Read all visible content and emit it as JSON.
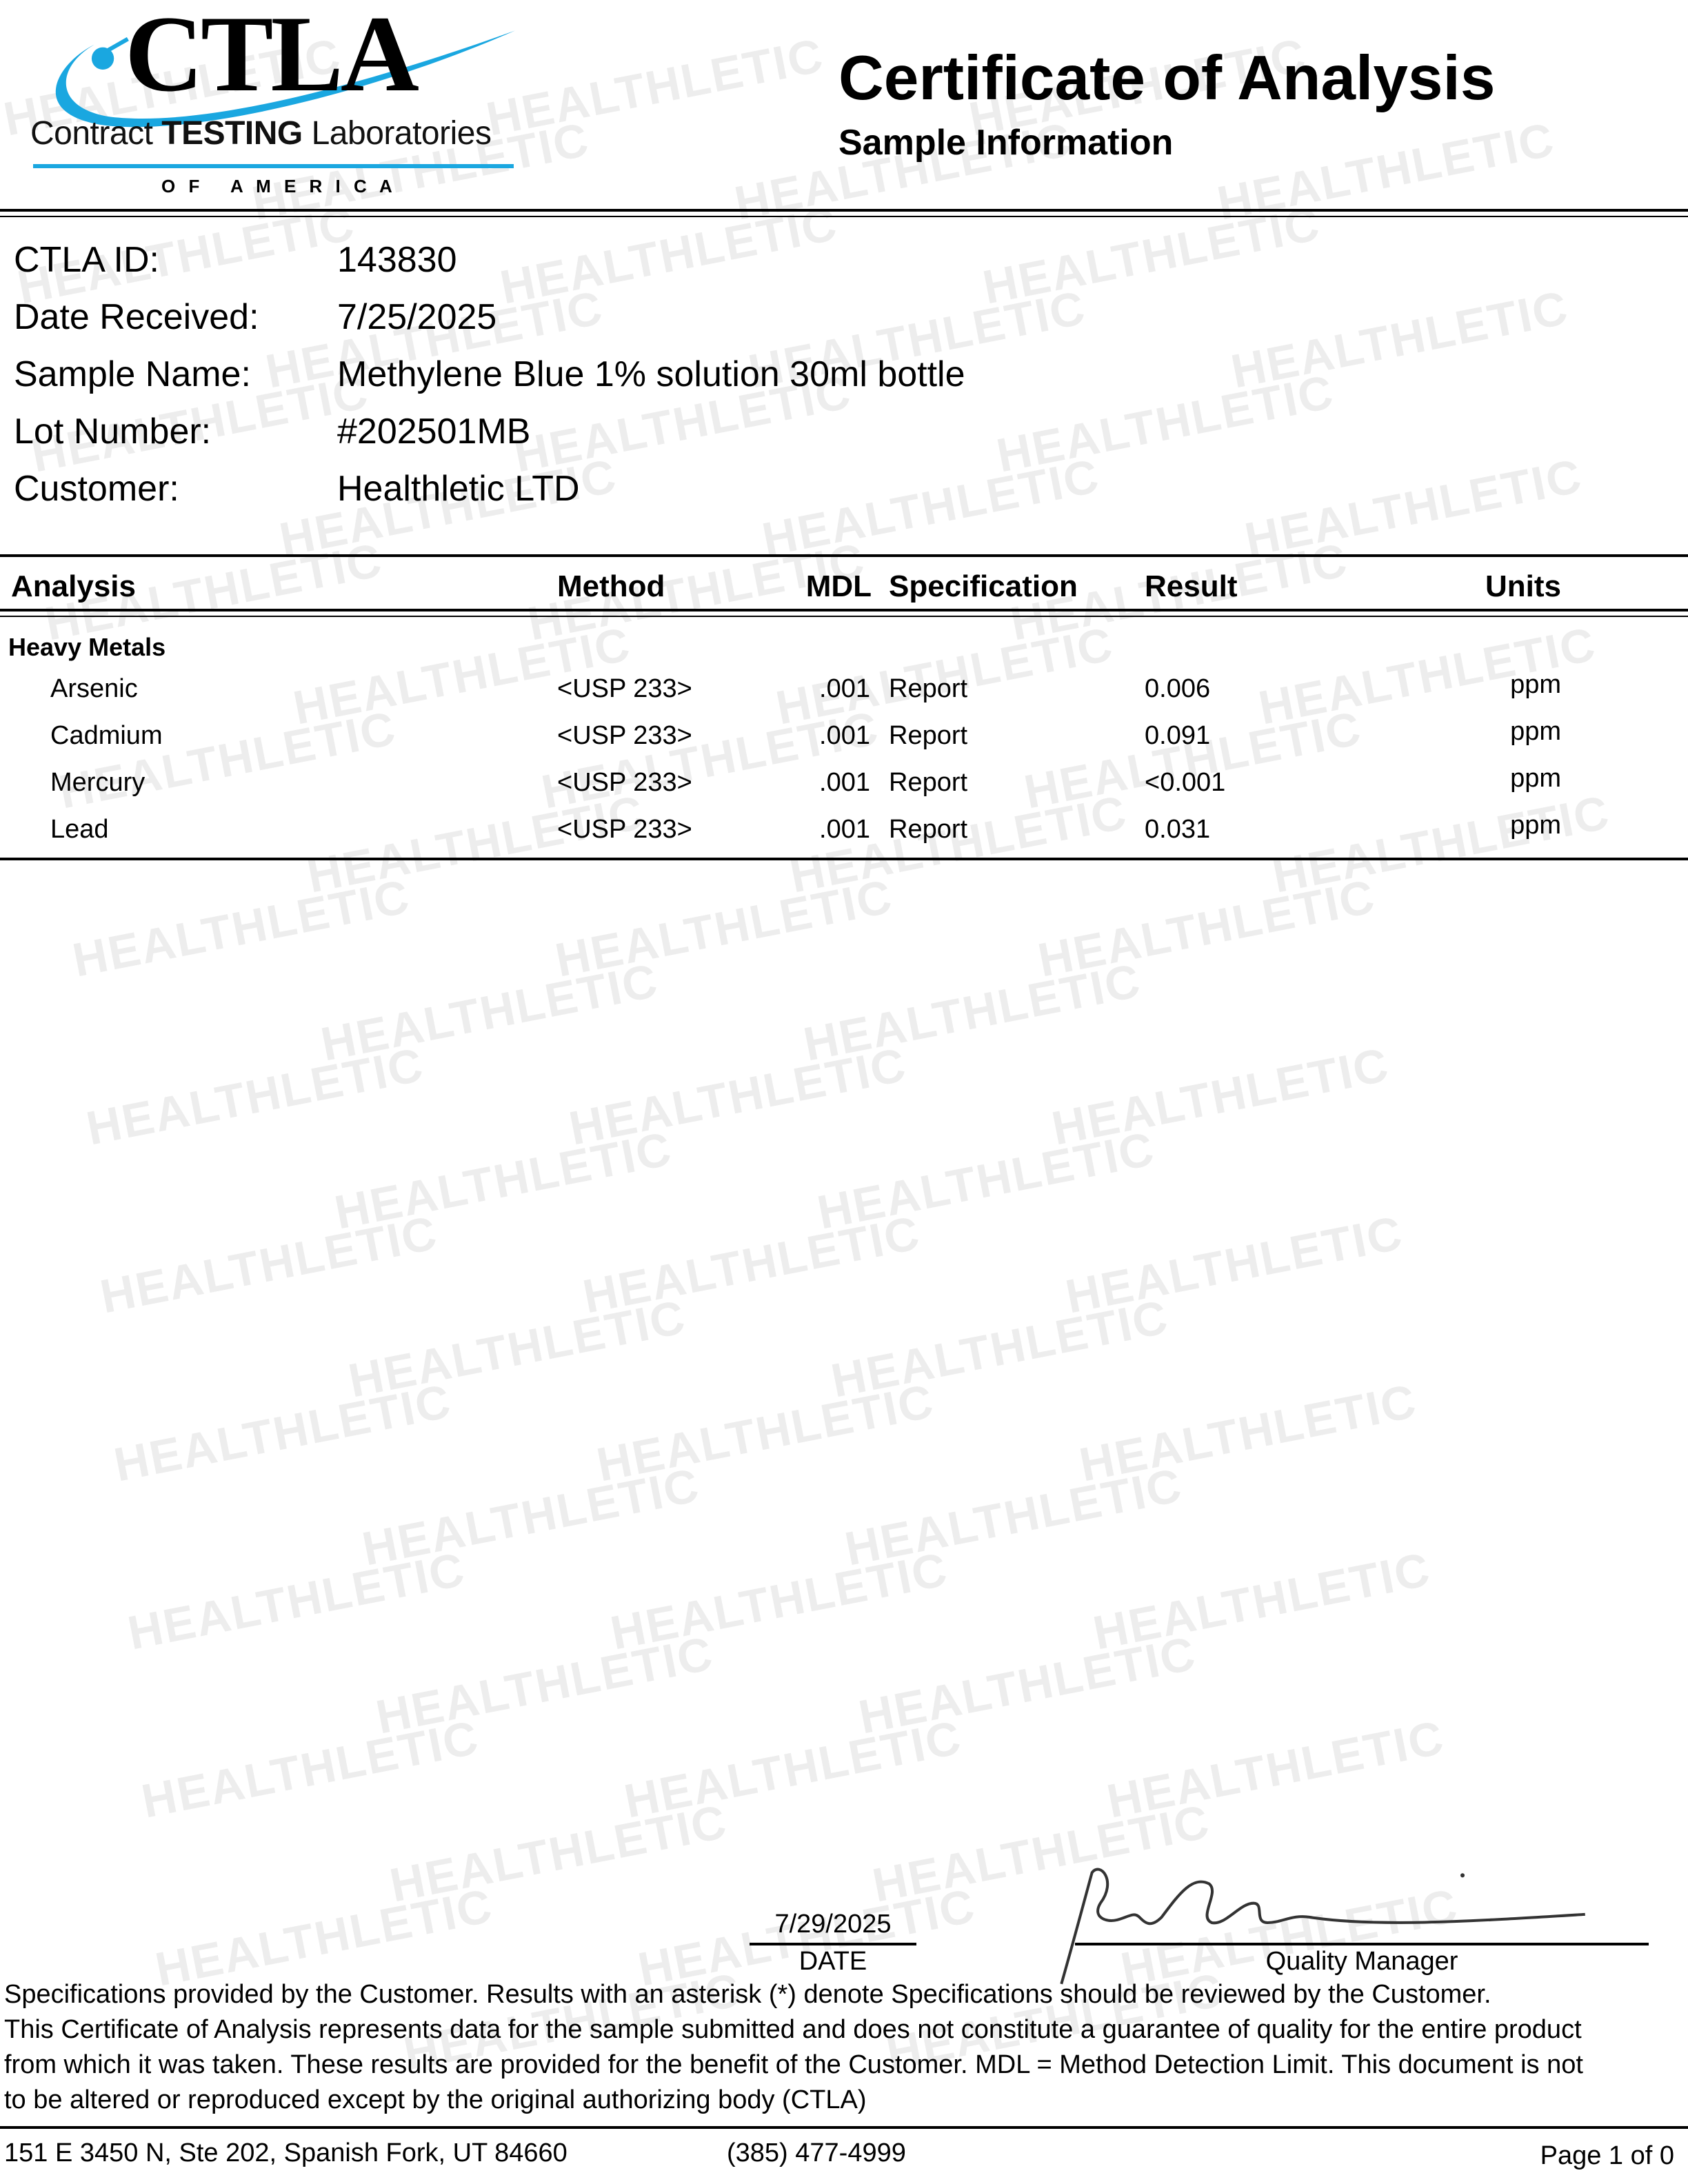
{
  "logo": {
    "mark": "CTLA",
    "line1_a": "Contract ",
    "line1_b": "TESTING",
    "line1_c": " Laboratories",
    "line2": "O F   A M E R I C A",
    "color": "#1aa7e0"
  },
  "header": {
    "title": "Certificate of Analysis",
    "subtitle": "Sample Information"
  },
  "sample_info": [
    {
      "label": "CTLA ID:",
      "value": "143830"
    },
    {
      "label": "Date Received:",
      "value": "7/25/2025"
    },
    {
      "label": "Sample Name:",
      "value": "Methylene Blue 1% solution 30ml bottle"
    },
    {
      "label": "Lot Number:",
      "value": "#202501MB"
    },
    {
      "label": "Customer:",
      "value": "Healthletic LTD"
    }
  ],
  "table": {
    "headers": {
      "analysis": "Analysis",
      "method": "Method",
      "mdl": "MDL",
      "specification": "Specification",
      "result": "Result",
      "units": "Units"
    },
    "group": "Heavy Metals",
    "rows": [
      {
        "analysis": "Arsenic",
        "method": "<USP 233>",
        "mdl": ".001",
        "specification": "Report",
        "result": "0.006",
        "units": "ppm"
      },
      {
        "analysis": "Cadmium",
        "method": "<USP 233>",
        "mdl": ".001",
        "specification": "Report",
        "result": "0.091",
        "units": "ppm"
      },
      {
        "analysis": "Mercury",
        "method": "<USP 233>",
        "mdl": ".001",
        "specification": "Report",
        "result": "<0.001",
        "units": "ppm"
      },
      {
        "analysis": "Lead",
        "method": "<USP 233>",
        "mdl": ".001",
        "specification": "Report",
        "result": "0.031",
        "units": "ppm"
      }
    ]
  },
  "signature": {
    "date": "7/29/2025",
    "date_label": "DATE",
    "signer_label": "Quality Manager"
  },
  "disclaimer": [
    "Specifications provided by the Customer. Results with an asterisk (*) denote Specifications should be reviewed by the Customer.",
    "This Certificate of Analysis represents data for the sample submitted and does not constitute a guarantee of quality for the entire product",
    "from which it was taken. These results are provided for the benefit of the Customer.  MDL = Method Detection Limit. This document is not",
    "to be altered or reproduced except by the original authorizing body (CTLA)"
  ],
  "footer": {
    "address": "151 E 3450 N, Ste 202, Spanish Fork, UT 84660",
    "phone": "(385) 477-4999",
    "page": "Page 1 of 0"
  },
  "watermark": "HEALTHLETIC"
}
